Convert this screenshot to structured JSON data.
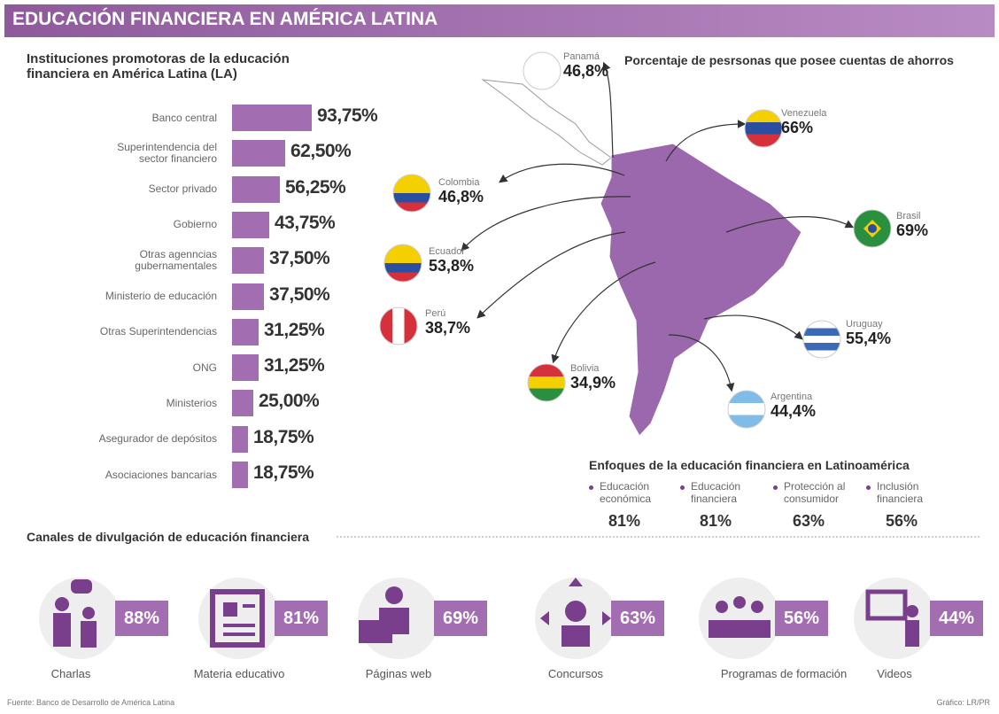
{
  "header": {
    "title": "EDUCACIÓN FINANCIERA EN AMÉRICA LATINA"
  },
  "chart_data": [
    {
      "type": "bar",
      "title": "Instituciones promotoras de la educación financiera en América Latina (LA)",
      "color": "#a36db1",
      "categories": [
        "Banco central",
        "Superintendencia del sector financiero",
        "Sector privado",
        "Gobierno",
        "Otras agenncias gubernamentales",
        "Ministerio de educación",
        "Otras Superintendencias",
        "ONG",
        "Ministerios",
        "Asegurador de depósitos",
        "Asociaciones bancarias"
      ],
      "values": [
        93.75,
        62.5,
        56.25,
        43.75,
        37.5,
        37.5,
        31.25,
        31.25,
        25,
        18.75,
        18.75
      ],
      "value_labels": [
        "93,75%",
        "62,50%",
        "56,25%",
        "43,75%",
        "37,50%",
        "37,50%",
        "31,25%",
        "31,25%",
        "25,00%",
        "18,75%",
        "18,75%"
      ]
    }
  ],
  "map": {
    "title": "Porcentaje de pesrsonas que posee cuentas de ahorros",
    "countries": [
      {
        "name": "Panamá",
        "value": "46,8%"
      },
      {
        "name": "Venezuela",
        "value": "66%"
      },
      {
        "name": "Colombia",
        "value": "46,8%"
      },
      {
        "name": "Brasil",
        "value": "69%"
      },
      {
        "name": "Ecuador",
        "value": "53,8%"
      },
      {
        "name": "Perú",
        "value": "38,7%"
      },
      {
        "name": "Uruguay",
        "value": "55,4%"
      },
      {
        "name": "Bolivia",
        "value": "34,9%"
      },
      {
        "name": "Argentina",
        "value": "44,4%"
      }
    ]
  },
  "enfoques": {
    "title": "Enfoques de la educación financiera en Latinoamérica",
    "items": [
      {
        "label": "Educación económica",
        "value": "81%"
      },
      {
        "label": "Educación financiera",
        "value": "81%"
      },
      {
        "label": "Protección al consumidor",
        "value": "63%"
      },
      {
        "label": "Inclusión financiera",
        "value": "56%"
      }
    ]
  },
  "canales": {
    "title": "Canales de divulgación de educación financiera",
    "items": [
      {
        "label": "Charlas",
        "value": "88%"
      },
      {
        "label": "Materia educativo",
        "value": "81%"
      },
      {
        "label": "Páginas web",
        "value": "69%"
      },
      {
        "label": "Concursos",
        "value": "63%"
      },
      {
        "label": "Programas de formación",
        "value": "56%"
      },
      {
        "label": "Videos",
        "value": "44%"
      }
    ]
  },
  "footer": {
    "source": "Fuente: Banco de Desarrollo de América Latina",
    "credit": "Gráfico: LR/PR"
  }
}
